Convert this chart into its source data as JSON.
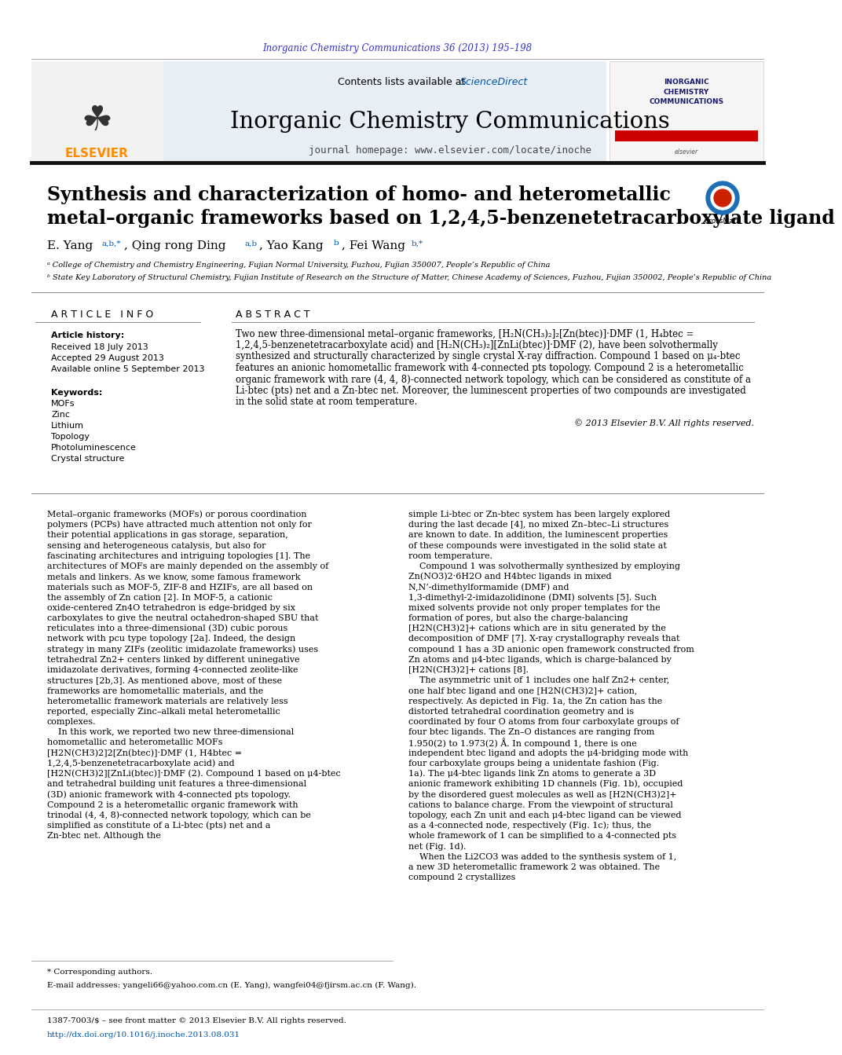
{
  "page_bg": "#ffffff",
  "top_journal_ref": "Inorganic Chemistry Communications 36 (2013) 195–198",
  "top_journal_ref_color": "#3333cc",
  "header_bg": "#e8eef5",
  "journal_title": "Inorganic Chemistry Communications",
  "journal_homepage": "journal homepage: www.elsevier.com/locate/inoche",
  "elsevier_color": "#ff8c00",
  "contents_text": "Contents lists available at ",
  "sciencedirect_text": "ScienceDirect",
  "sciencedirect_color": "#0055aa",
  "paper_title_line1": "Synthesis and characterization of homo- and heterometallic",
  "paper_title_line2": "metal–organic frameworks based on 1,2,4,5-benzenetetracarboxylate ligand",
  "affil_a": "ᵃ College of Chemistry and Chemistry Engineering, Fujian Normal University, Fuzhou, Fujian 350007, People’s Republic of China",
  "affil_b": "ᵇ State Key Laboratory of Structural Chemistry, Fujian Institute of Research on the Structure of Matter, Chinese Academy of Sciences, Fuzhou, Fujian 350002, People’s Republic of China",
  "article_info_header": "A R T I C L E   I N F O",
  "abstract_header": "A B S T R A C T",
  "article_history_label": "Article history:",
  "received_text": "Received 18 July 2013",
  "accepted_text": "Accepted 29 August 2013",
  "available_text": "Available online 5 September 2013",
  "keywords_label": "Keywords:",
  "keywords": [
    "MOFs",
    "Zinc",
    "Lithium",
    "Topology",
    "Photoluminescence",
    "Crystal structure"
  ],
  "copyright_text": "© 2013 Elsevier B.V. All rights reserved.",
  "body_left_col": "Metal–organic frameworks (MOFs) or porous coordination polymers (PCPs) have attracted much attention not only for their potential applications in gas storage, separation, sensing and heterogeneous catalysis, but also for fascinating architectures and intriguing topologies [1]. The architectures of MOFs are mainly depended on the assembly of metals and linkers. As we know, some famous framework materials such as MOF-5, ZIF-8 and HZIFs, are all based on the assembly of Zn cation [2]. In MOF-5, a cationic oxide-centered Zn4O tetrahedron is edge-bridged by six carboxylates to give the neutral octahedron-shaped SBU that reticulates into a three-dimensional (3D) cubic porous network with pcu type topology [2a]. Indeed, the design strategy in many ZIFs (zeolitic imidazolate frameworks) uses tetrahedral Zn2+ centers linked by different uninegative imidazolate derivatives, forming 4-connected zeolite-like structures [2b,3]. As mentioned above, most of these frameworks are homometallic materials, and the heterometallic framework materials are relatively less reported, especially Zinc–alkali metal heterometallic complexes.\n    In this work, we reported two new three-dimensional homometallic and heterometallic MOFs [H2N(CH3)2]2[Zn(btec)]·DMF (1, H4btec = 1,2,4,5-benzenetetracarboxylate acid) and [H2N(CH3)2][ZnLi(btec)]·DMF (2). Compound 1 based on μ4-btec and tetrahedral building unit features a three-dimensional (3D) anionic framework with 4-connected pts topology. Compound 2 is a heterometallic organic framework with trinodal (4, 4, 8)-connected network topology, which can be simplified as constitute of a Li-btec (pts) net and a Zn-btec net. Although the",
  "body_right_col": "simple Li-btec or Zn-btec system has been largely explored during the last decade [4], no mixed Zn–btec–Li structures are known to date. In addition, the luminescent properties of these compounds were investigated in the solid state at room temperature.\n    Compound 1 was solvothermally synthesized by employing Zn(NO3)2·6H2O and H4btec ligands in mixed N,N’-dimethylformamide (DMF) and 1,3-dimethyl-2-imidazolidinone (DMI) solvents [5]. Such mixed solvents provide not only proper templates for the formation of pores, but also the charge-balancing [H2N(CH3)2]+ cations which are in situ generated by the decomposition of DMF [7]. X-ray crystallography reveals that compound 1 has a 3D anionic open framework constructed from Zn atoms and μ4-btec ligands, which is charge-balanced by [H2N(CH3)2]+ cations [8].\n    The asymmetric unit of 1 includes one half Zn2+ center, one half btec ligand and one [H2N(CH3)2]+ cation, respectively. As depicted in Fig. 1a, the Zn cation has the distorted tetrahedral coordination geometry and is coordinated by four O atoms from four carboxylate groups of four btec ligands. The Zn–O distances are ranging from 1.950(2) to 1.973(2) Å. In compound 1, there is one independent btec ligand and adopts the μ4-bridging mode with four carboxylate groups being a unidentate fashion (Fig. 1a). The μ4-btec ligands link Zn atoms to generate a 3D anionic framework exhibiting 1D channels (Fig. 1b), occupied by the disordered guest molecules as well as [H2N(CH3)2]+ cations to balance charge. From the viewpoint of structural topology, each Zn unit and each μ4-btec ligand can be viewed as a 4-connected node, respectively (Fig. 1c); thus, the whole framework of 1 can be simplified to a 4-connected pts net (Fig. 1d).\n    When the Li2CO3 was added to the synthesis system of 1, a new 3D heterometallic framework 2 was obtained. The compound 2 crystallizes",
  "footnote_corresponding": "* Corresponding authors.",
  "footnote_email": "E-mail addresses: yangeli66@yahoo.com.cn (E. Yang), wangfei04@fjirsm.ac.cn (F. Wang).",
  "footer_issn": "1387-7003/$ – see front matter © 2013 Elsevier B.V. All rights reserved.",
  "footer_doi": "http://dx.doi.org/10.1016/j.inoche.2013.08.031"
}
